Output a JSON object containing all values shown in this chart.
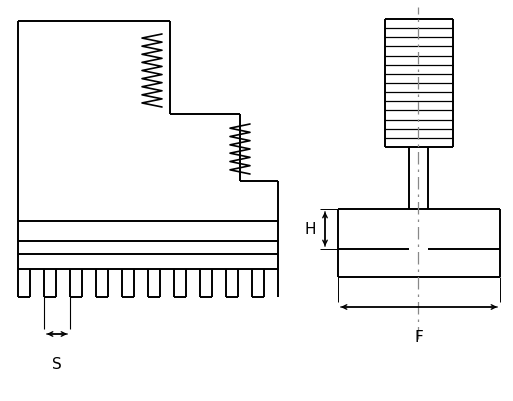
{
  "background_color": "#ffffff",
  "line_color": "#000000",
  "figsize": [
    5.13,
    4.02
  ],
  "dpi": 100,
  "label_S": "S",
  "label_H": "H",
  "label_F": "F"
}
